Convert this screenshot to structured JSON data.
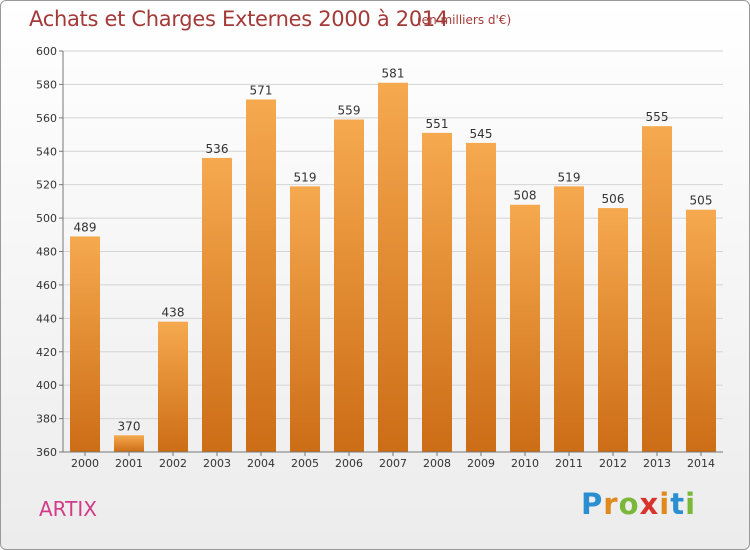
{
  "title": "Achats et Charges Externes 2000 à 2014",
  "subtitle": "(en milliers d'€)",
  "commune": "ARTIX",
  "logo": {
    "text": "Proxiti"
  },
  "colors": {
    "title": "#a33a38",
    "commune": "#d33a88",
    "bar_top": "#f6a94f",
    "bar_bottom": "#cc6d16"
  },
  "chart_data": {
    "type": "bar",
    "title": "Achats et Charges Externes 2000 à 2014",
    "subtitle": "(en milliers d'€)",
    "xlabel": "",
    "ylabel": "",
    "categories": [
      "2000",
      "2001",
      "2002",
      "2003",
      "2004",
      "2005",
      "2006",
      "2007",
      "2008",
      "2009",
      "2010",
      "2011",
      "2012",
      "2013",
      "2014"
    ],
    "values": [
      489,
      370,
      438,
      536,
      571,
      519,
      559,
      581,
      551,
      545,
      508,
      519,
      506,
      555,
      505
    ],
    "ylim": [
      360,
      600
    ],
    "yticks": [
      360,
      380,
      400,
      420,
      440,
      460,
      480,
      500,
      520,
      540,
      560,
      580,
      600
    ],
    "grid": "horizontal"
  }
}
